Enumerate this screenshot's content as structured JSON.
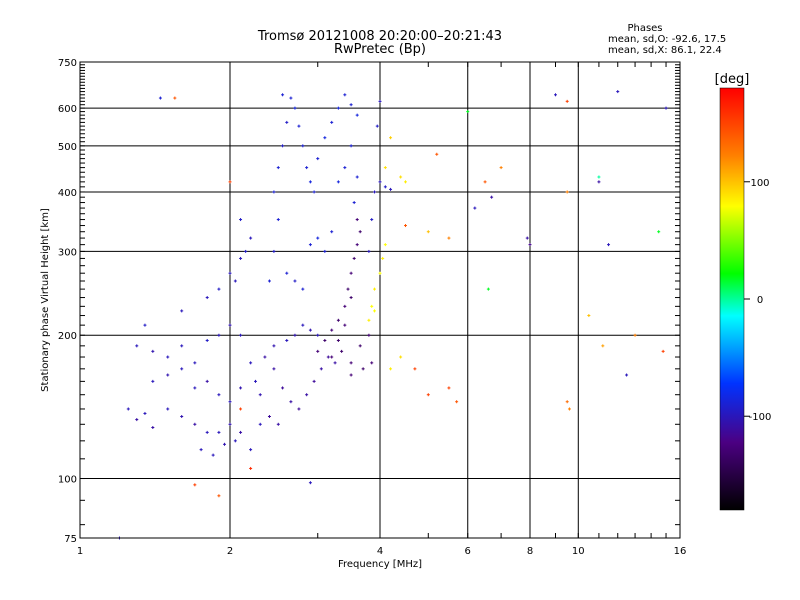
{
  "chart_data": {
    "type": "scatter",
    "title": "Tromsø 20121008 20:20:00–20:21:43",
    "subtitle": "RwPretec (Bp)",
    "xlabel": "Frequency [MHz]",
    "ylabel": "Stationary phase Virtual Height [km]",
    "x_scale": "log",
    "y_scale": "log",
    "xlim": [
      1,
      16
    ],
    "ylim": [
      75,
      750
    ],
    "x_ticks": [
      1,
      2,
      4,
      6,
      8,
      10,
      16
    ],
    "y_ticks": [
      75,
      100,
      200,
      300,
      400,
      500,
      600,
      750
    ],
    "grid": true,
    "stats": {
      "heading": "Phases",
      "line1": "mean, sd,O:  -92.6, 17.5",
      "line2": "mean, sd,X:  86.1, 22.4"
    },
    "colorbar": {
      "label": "[deg]",
      "range": [
        -180,
        180
      ],
      "ticks": [
        100,
        0,
        -100
      ],
      "colormap": "rainbow"
    },
    "series": [
      {
        "name": "",
        "points": [
          [
            1.25,
            140,
            -100
          ],
          [
            1.3,
            133,
            -110
          ],
          [
            1.35,
            137,
            -100
          ],
          [
            1.4,
            128,
            -110
          ],
          [
            1.5,
            140,
            -100
          ],
          [
            1.6,
            135,
            -105
          ],
          [
            1.7,
            130,
            -110
          ],
          [
            1.8,
            125,
            -100
          ],
          [
            1.9,
            125,
            -100
          ],
          [
            2.0,
            130,
            -105
          ],
          [
            2.1,
            125,
            -110
          ],
          [
            1.3,
            190,
            -100
          ],
          [
            1.4,
            185,
            -105
          ],
          [
            1.5,
            180,
            -100
          ],
          [
            1.6,
            190,
            -100
          ],
          [
            1.7,
            175,
            -100
          ],
          [
            1.8,
            195,
            -95
          ],
          [
            1.9,
            200,
            -100
          ],
          [
            2.0,
            210,
            -105
          ],
          [
            2.1,
            200,
            -100
          ],
          [
            1.4,
            160,
            -100
          ],
          [
            1.5,
            165,
            -105
          ],
          [
            1.6,
            170,
            -100
          ],
          [
            1.7,
            155,
            -100
          ],
          [
            1.8,
            160,
            -110
          ],
          [
            1.9,
            150,
            -100
          ],
          [
            2.0,
            145,
            -100
          ],
          [
            2.1,
            155,
            -105
          ],
          [
            1.35,
            210,
            -95
          ],
          [
            1.6,
            225,
            -100
          ],
          [
            1.8,
            240,
            -100
          ],
          [
            1.9,
            250,
            -95
          ],
          [
            2.0,
            270,
            -100
          ],
          [
            2.1,
            290,
            -100
          ],
          [
            2.15,
            300,
            -95
          ],
          [
            2.2,
            320,
            -100
          ],
          [
            2.1,
            350,
            -95
          ],
          [
            2.05,
            260,
            -100
          ],
          [
            1.75,
            115,
            -100
          ],
          [
            1.85,
            112,
            -100
          ],
          [
            1.95,
            118,
            -105
          ],
          [
            2.05,
            120,
            -100
          ],
          [
            2.2,
            115,
            -100
          ],
          [
            2.3,
            130,
            -100
          ],
          [
            2.2,
            175,
            -100
          ],
          [
            2.25,
            160,
            -100
          ],
          [
            2.3,
            150,
            -105
          ],
          [
            2.4,
            260,
            -90
          ],
          [
            2.45,
            300,
            -95
          ],
          [
            2.5,
            350,
            -90
          ],
          [
            2.45,
            400,
            -90
          ],
          [
            2.5,
            450,
            -90
          ],
          [
            2.55,
            500,
            -95
          ],
          [
            2.6,
            560,
            -95
          ],
          [
            2.55,
            640,
            -90
          ],
          [
            2.65,
            630,
            -90
          ],
          [
            2.7,
            600,
            -85
          ],
          [
            2.75,
            550,
            -90
          ],
          [
            2.8,
            500,
            -90
          ],
          [
            2.85,
            450,
            -90
          ],
          [
            2.9,
            420,
            -85
          ],
          [
            2.95,
            400,
            -90
          ],
          [
            3.0,
            470,
            -90
          ],
          [
            3.1,
            520,
            -85
          ],
          [
            3.2,
            560,
            -90
          ],
          [
            3.3,
            600,
            -85
          ],
          [
            3.4,
            640,
            -90
          ],
          [
            3.5,
            610,
            -90
          ],
          [
            3.6,
            580,
            -85
          ],
          [
            3.5,
            500,
            -90
          ],
          [
            3.4,
            450,
            -90
          ],
          [
            3.3,
            420,
            -85
          ],
          [
            3.6,
            430,
            -90
          ],
          [
            3.55,
            380,
            -90
          ],
          [
            2.6,
            270,
            -90
          ],
          [
            2.7,
            260,
            -95
          ],
          [
            2.8,
            250,
            -90
          ],
          [
            2.9,
            310,
            -90
          ],
          [
            3.0,
            320,
            -85
          ],
          [
            3.1,
            300,
            -90
          ],
          [
            3.2,
            330,
            -90
          ],
          [
            2.35,
            180,
            -110
          ],
          [
            2.45,
            170,
            -110
          ],
          [
            2.55,
            155,
            -115
          ],
          [
            2.65,
            145,
            -110
          ],
          [
            2.75,
            140,
            -115
          ],
          [
            2.85,
            150,
            -110
          ],
          [
            2.95,
            160,
            -115
          ],
          [
            3.05,
            170,
            -110
          ],
          [
            3.15,
            180,
            -115
          ],
          [
            3.25,
            175,
            -110
          ],
          [
            2.4,
            135,
            -115
          ],
          [
            2.5,
            130,
            -110
          ],
          [
            2.45,
            190,
            -105
          ],
          [
            2.6,
            195,
            -100
          ],
          [
            2.7,
            200,
            -105
          ],
          [
            2.8,
            210,
            -100
          ],
          [
            2.9,
            205,
            -105
          ],
          [
            3.0,
            200,
            -100
          ],
          [
            3.0,
            185,
            -130
          ],
          [
            3.1,
            195,
            -135
          ],
          [
            3.2,
            205,
            -130
          ],
          [
            3.3,
            215,
            -135
          ],
          [
            3.4,
            230,
            -130
          ],
          [
            3.45,
            250,
            -135
          ],
          [
            3.5,
            270,
            -130
          ],
          [
            3.55,
            290,
            -135
          ],
          [
            3.6,
            310,
            -130
          ],
          [
            3.65,
            330,
            -135
          ],
          [
            3.6,
            350,
            -130
          ],
          [
            3.5,
            240,
            -135
          ],
          [
            3.4,
            210,
            -130
          ],
          [
            3.3,
            195,
            -135
          ],
          [
            3.2,
            180,
            -130
          ],
          [
            3.35,
            185,
            -135
          ],
          [
            3.5,
            175,
            -130
          ],
          [
            3.65,
            190,
            -135
          ],
          [
            3.8,
            200,
            -130
          ],
          [
            3.5,
            165,
            -130
          ],
          [
            3.7,
            170,
            -135
          ],
          [
            3.85,
            175,
            -130
          ],
          [
            3.8,
            300,
            -100
          ],
          [
            3.85,
            350,
            -95
          ],
          [
            3.9,
            400,
            -100
          ],
          [
            4.0,
            420,
            -100
          ],
          [
            4.1,
            410,
            -95
          ],
          [
            4.2,
            405,
            -100
          ],
          [
            3.95,
            550,
            -95
          ],
          [
            4.0,
            620,
            -100
          ],
          [
            3.85,
            230,
            80
          ],
          [
            3.9,
            250,
            85
          ],
          [
            4.0,
            270,
            80
          ],
          [
            4.05,
            290,
            85
          ],
          [
            4.1,
            310,
            80
          ],
          [
            3.8,
            215,
            85
          ],
          [
            3.9,
            225,
            80
          ],
          [
            4.1,
            450,
            90
          ],
          [
            4.2,
            520,
            95
          ],
          [
            4.4,
            430,
            90
          ],
          [
            4.5,
            420,
            85
          ],
          [
            4.4,
            180,
            90
          ],
          [
            4.2,
            170,
            85
          ],
          [
            4.5,
            340,
            140
          ],
          [
            5.2,
            480,
            140
          ],
          [
            5.5,
            320,
            120
          ],
          [
            5.0,
            330,
            100
          ],
          [
            6.0,
            590,
            20
          ],
          [
            6.2,
            370,
            -100
          ],
          [
            6.5,
            420,
            140
          ],
          [
            6.6,
            250,
            20
          ],
          [
            6.7,
            390,
            -110
          ],
          [
            7.0,
            450,
            120
          ],
          [
            7.9,
            320,
            -110
          ],
          [
            8.0,
            310,
            -120
          ],
          [
            9.0,
            640,
            -100
          ],
          [
            9.5,
            620,
            150
          ],
          [
            9.5,
            400,
            120
          ],
          [
            9.5,
            145,
            130
          ],
          [
            9.6,
            140,
            120
          ],
          [
            10.5,
            220,
            100
          ],
          [
            11.0,
            420,
            -110
          ],
          [
            11.0,
            430,
            0
          ],
          [
            11.2,
            190,
            110
          ],
          [
            11.5,
            310,
            -100
          ],
          [
            12.0,
            650,
            -100
          ],
          [
            12.5,
            165,
            -100
          ],
          [
            13.0,
            200,
            120
          ],
          [
            14.5,
            330,
            20
          ],
          [
            14.8,
            185,
            150
          ],
          [
            15.0,
            600,
            -100
          ],
          [
            1.45,
            630,
            -90
          ],
          [
            1.55,
            630,
            140
          ],
          [
            1.7,
            97,
            150
          ],
          [
            1.9,
            92,
            140
          ],
          [
            2.0,
            420,
            150
          ],
          [
            2.1,
            140,
            150
          ],
          [
            2.2,
            105,
            160
          ],
          [
            2.9,
            98,
            -100
          ],
          [
            1.2,
            75,
            -100
          ],
          [
            4.7,
            170,
            150
          ],
          [
            5.0,
            150,
            150
          ],
          [
            5.5,
            155,
            150
          ],
          [
            5.7,
            145,
            140
          ]
        ]
      }
    ]
  }
}
